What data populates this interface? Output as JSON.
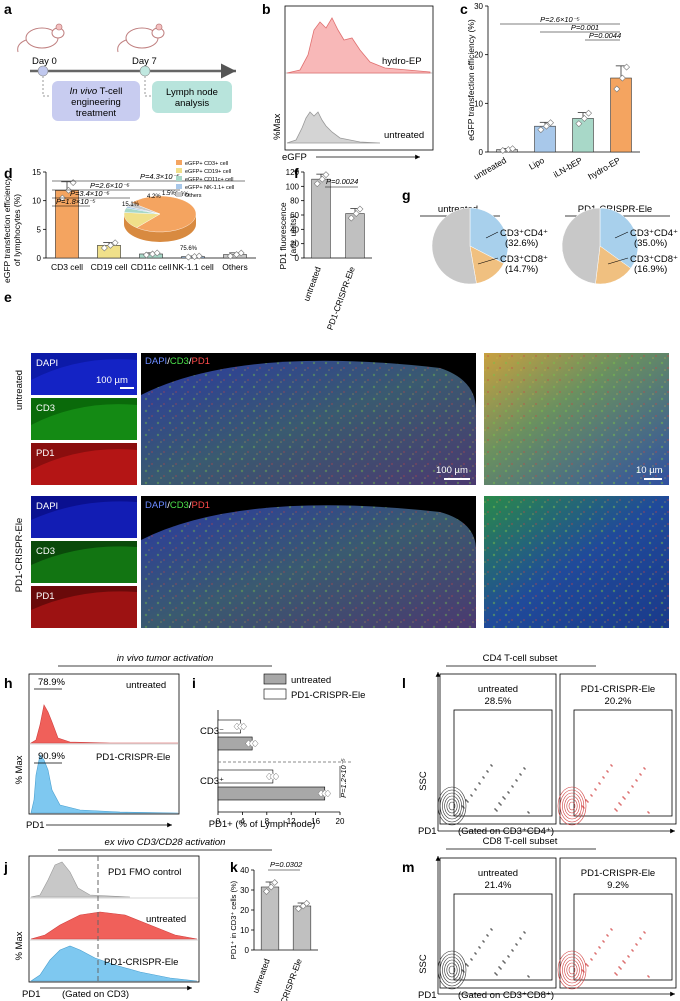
{
  "panels": {
    "a": "a",
    "b": "b",
    "c": "c",
    "d": "d",
    "e": "e",
    "f": "f",
    "g": "g",
    "h": "h",
    "i": "i",
    "j": "j",
    "k": "k",
    "l": "l",
    "m": "m"
  },
  "a": {
    "day0": "Day 0",
    "day7": "Day 7",
    "treat1": "In vivo",
    "treat2": " T-cell",
    "treat3": "engineering",
    "treat4": "treatment",
    "analysis1": "Lymph node",
    "analysis2": "analysis"
  },
  "b": {
    "ylabel": "%Max",
    "xlabel": "eGFP",
    "top": "hydro-EP",
    "bottom": "untreated"
  },
  "c": {
    "ylabel": "eGFP transfection efficiency (%)",
    "yticks": [
      "0",
      "10",
      "20",
      "30"
    ],
    "groups": [
      "untreated",
      "Lipo",
      "iLN-bEP",
      "hydro-EP"
    ],
    "values": [
      0.5,
      5.3,
      6.9,
      15.2
    ],
    "errors": [
      0.2,
      0.8,
      1.2,
      2.5
    ],
    "colors": [
      "#c8c8c8",
      "#a8c8ea",
      "#a8d8c8",
      "#f4a460"
    ],
    "p1": "P=2.6×10⁻⁵",
    "p2": "P=0.001",
    "p3": "P=0.0044"
  },
  "d": {
    "ylabel1": "eGFP transfection efficiency",
    "ylabel2": "of lymphocytes (%)",
    "yticks": [
      "0",
      "5",
      "10",
      "15"
    ],
    "groups": [
      "CD3 cell",
      "CD19 cell",
      "CD11c cell",
      "NK-1.1 cell",
      "Others"
    ],
    "values": [
      11.8,
      2.2,
      0.7,
      0.25,
      0.6
    ],
    "errors": [
      1.5,
      0.5,
      0.2,
      0.1,
      0.3
    ],
    "colors": [
      "#f4a460",
      "#f0e08a",
      "#a8d8c8",
      "#a8c8ea",
      "#c8c8c8"
    ],
    "p1": "P=1.8×10⁻⁵",
    "p2": "P=3.4×10⁻⁶",
    "p3": "P=2.6×10⁻⁶",
    "p4": "P=4.3×10⁻⁶",
    "legend": [
      "eGFP+ CD3+ cell",
      "eGFP+ CD19+ cell",
      "eGFP+ CD11c+ cell",
      "eGFP+ NK-1.1+ cell",
      "Others"
    ],
    "pie_labels": [
      "75.6%",
      "15.1%",
      "4.2%",
      "1.5%",
      "3.6%"
    ],
    "pie_values": [
      75.6,
      15.1,
      4.2,
      1.5,
      3.6
    ]
  },
  "e": {
    "untreated": "untreated",
    "treated": "PD1-CRISPR-Ele",
    "dapi": "DAPI",
    "cd3": "CD3",
    "pd1": "PD1",
    "merge_dapi": "DAPI",
    "merge_cd3": "CD3",
    "merge_pd1": "PD1",
    "slash": "/",
    "scale1": "100 µm",
    "scale2": "100 µm",
    "scale3": "10 µm"
  },
  "f": {
    "ylabel1": "PD1 fluorescence",
    "ylabel2": "(arb. units)",
    "yticks": [
      "0",
      "20",
      "40",
      "60",
      "80",
      "100",
      "120"
    ],
    "groups": [
      "untreated",
      "PD1-CRISPR-Ele"
    ],
    "values": [
      110,
      62
    ],
    "errors": [
      7,
      7
    ],
    "p": "P=0.0024"
  },
  "g": {
    "t1": "untreated",
    "t2": "PD1-CRISPR-Ele",
    "cd4a": "CD3⁺CD4⁺",
    "cd4av": "(32.6%)",
    "cd8a": "CD3⁺CD8⁺",
    "cd8av": "(14.7%)",
    "cd4b": "CD3⁺CD4⁺",
    "cd4bv": "(35.0%)",
    "cd8b": "CD3⁺CD8⁺",
    "cd8bv": "(16.9%)",
    "pie1": [
      32.6,
      14.7,
      52.7
    ],
    "pie2": [
      35.0,
      16.9,
      48.1
    ]
  },
  "h": {
    "header": "in vivo tumor activation",
    "p1": "78.9%",
    "l1": "untreated",
    "p2": "90.9%",
    "l2": "PD1-CRISPR-Ele",
    "xlabel": "PD1",
    "ylabel": "% Max"
  },
  "i": {
    "legend1": "untreated",
    "legend2": "PD1-CRISPR-Ele",
    "cat1": "CD3⁻",
    "cat2": "CD3⁺",
    "xticks": [
      "0",
      "4",
      "8",
      "12",
      "16",
      "20"
    ],
    "xlabel": "PD1+ (% of Lymph node)",
    "p": "P=1.2×10⁻⁵",
    "values": {
      "cd3neg_untreated": 5.6,
      "cd3neg_treated": 3.7,
      "cd3pos_untreated": 17.5,
      "cd3pos_treated": 9.0
    }
  },
  "j": {
    "header": "ex vivo CD3/CD28 activation",
    "l1": "PD1 FMO control",
    "l2": "untreated",
    "l3": "PD1-CRISPR-Ele",
    "xlabel": "PD1",
    "gate": "(Gated on CD3)",
    "ylabel": "% Max"
  },
  "k": {
    "ylabel": "PD1⁺ in CD3⁺ cells (%)",
    "yticks": [
      "0",
      "10",
      "20",
      "30",
      "40"
    ],
    "groups": [
      "untreated",
      "PD1-CRISPR-Ele"
    ],
    "values": [
      31.5,
      22
    ],
    "errors": [
      2.5,
      1.5
    ],
    "p": "P=0.0302"
  },
  "l": {
    "header": "CD4 T-cell subset",
    "t1": "untreated",
    "v1": "28.5%",
    "t2": "PD1-CRISPR-Ele",
    "v2": "20.2%",
    "ylabel": "SSC",
    "xlabel": "PD1",
    "gate": "(Gated on CD3⁺CD4⁺)"
  },
  "m": {
    "header": "CD8 T-cell subset",
    "t1": "untreated",
    "v1": "21.4%",
    "t2": "PD1-CRISPR-Ele",
    "v2": "9.2%",
    "ylabel": "SSC",
    "xlabel": "PD1",
    "gate": "(Gated on CD3⁺CD8⁺)"
  },
  "colors": {
    "untreated_bar": "#c8c8c8",
    "red_hist": "#f0605a",
    "blue_hist": "#7ec8f0",
    "pie_blue": "#a8d0ec",
    "pie_orange": "#f0c080",
    "pie_gray": "#c8c8c8",
    "tile_blue": "#0a1aa0",
    "tile_green": "#0a7a0a",
    "tile_red": "#a01010"
  }
}
